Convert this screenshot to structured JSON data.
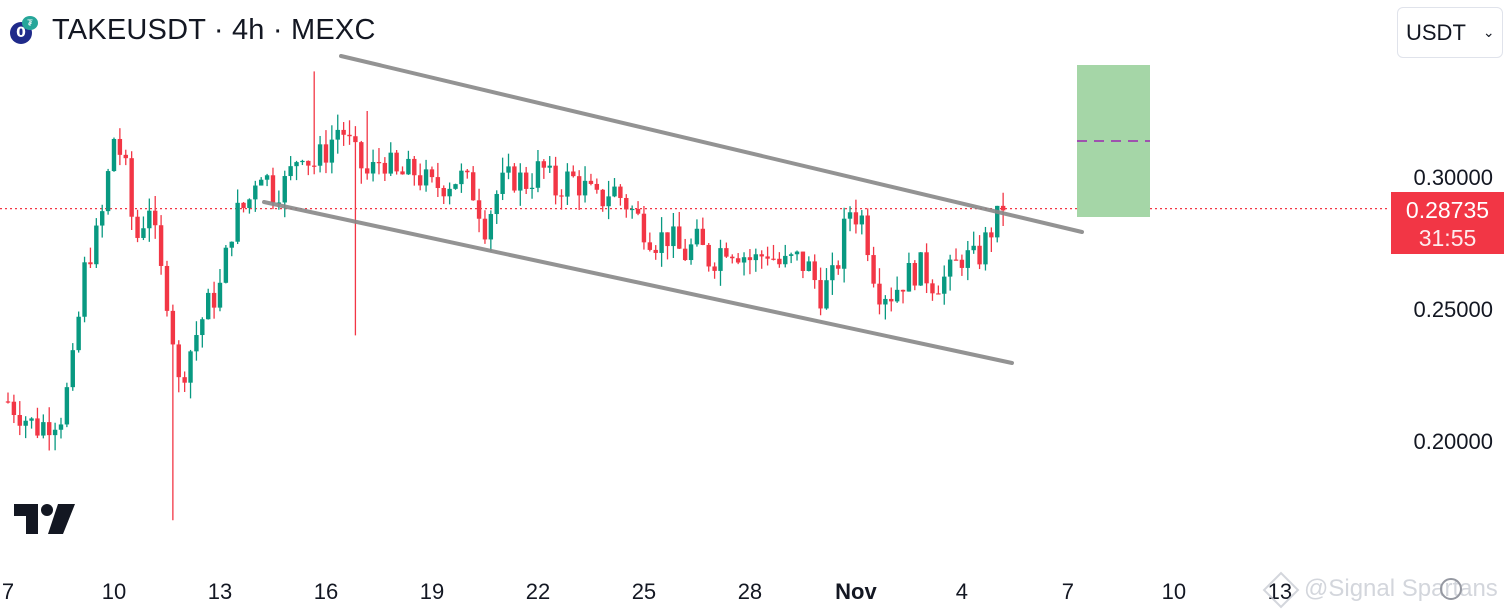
{
  "header": {
    "title": "TAKEUSDT · 4h · MEXC",
    "coin_icon": "take-coin-icon",
    "coin_letter": "0",
    "coin_tag": "₮"
  },
  "currency_select": {
    "value": "USDT",
    "icon": "chevron-down-icon"
  },
  "price_badge": {
    "price": "0.28735",
    "countdown": "31:55",
    "color": "#f23645"
  },
  "watermark": {
    "text": "@Signal Spartans"
  },
  "colors": {
    "up": "#089981",
    "down": "#f23645",
    "channel": "#888888",
    "target_zone": "#a5d6a7",
    "target_mid": "#9c27b0"
  },
  "chart_data": {
    "type": "candlestick",
    "symbol": "TAKEUSDT",
    "interval": "4h",
    "exchange": "MEXC",
    "x_tick_labels": [
      "7",
      "10",
      "13",
      "16",
      "19",
      "22",
      "25",
      "28",
      "Nov",
      "4",
      "7",
      "10",
      "13"
    ],
    "y_tick_labels": [
      "0.30000",
      "0.25000",
      "0.20000"
    ],
    "y_ticks": [
      0.3,
      0.25,
      0.2
    ],
    "ylim": [
      0.156,
      0.34
    ],
    "x_range_days": [
      "Oct 7",
      "Nov 14"
    ],
    "last_price": 0.28735,
    "candle_close_path": [
      [
        0.0,
        0.215
      ],
      [
        0.8,
        0.205
      ],
      [
        1.5,
        0.21
      ],
      [
        1.8,
        0.225
      ],
      [
        2.2,
        0.268
      ],
      [
        2.6,
        0.28
      ],
      [
        3.0,
        0.315
      ],
      [
        3.3,
        0.305
      ],
      [
        3.6,
        0.275
      ],
      [
        4.0,
        0.29
      ],
      [
        4.3,
        0.265
      ],
      [
        4.6,
        0.25
      ],
      [
        4.8,
        0.22
      ],
      [
        5.2,
        0.236
      ],
      [
        5.6,
        0.25
      ],
      [
        6.0,
        0.258
      ],
      [
        6.4,
        0.285
      ],
      [
        6.8,
        0.29
      ],
      [
        7.1,
        0.305
      ],
      [
        7.5,
        0.295
      ],
      [
        7.9,
        0.298
      ],
      [
        8.3,
        0.312
      ],
      [
        8.6,
        0.304
      ],
      [
        9.0,
        0.31
      ],
      [
        9.4,
        0.32
      ],
      [
        9.8,
        0.308
      ],
      [
        10.2,
        0.3
      ],
      [
        10.6,
        0.308
      ],
      [
        11.0,
        0.3
      ],
      [
        11.5,
        0.302
      ],
      [
        12.0,
        0.296
      ],
      [
        12.4,
        0.298
      ],
      [
        12.8,
        0.3
      ],
      [
        13.2,
        0.294
      ],
      [
        13.5,
        0.282
      ],
      [
        13.9,
        0.296
      ],
      [
        14.3,
        0.3
      ],
      [
        14.7,
        0.298
      ],
      [
        15.1,
        0.304
      ],
      [
        15.5,
        0.295
      ],
      [
        15.9,
        0.3
      ],
      [
        16.3,
        0.296
      ],
      [
        16.7,
        0.29
      ],
      [
        17.1,
        0.296
      ],
      [
        17.5,
        0.29
      ],
      [
        17.9,
        0.283
      ],
      [
        18.3,
        0.276
      ],
      [
        18.7,
        0.278
      ],
      [
        19.1,
        0.27
      ],
      [
        19.5,
        0.275
      ],
      [
        19.9,
        0.268
      ],
      [
        20.3,
        0.275
      ],
      [
        20.7,
        0.272
      ],
      [
        21.1,
        0.268
      ],
      [
        21.5,
        0.272
      ],
      [
        21.9,
        0.266
      ],
      [
        22.3,
        0.269
      ],
      [
        22.7,
        0.265
      ],
      [
        23.0,
        0.256
      ],
      [
        23.4,
        0.262
      ],
      [
        23.8,
        0.288
      ],
      [
        24.2,
        0.284
      ],
      [
        24.6,
        0.258
      ],
      [
        25.0,
        0.256
      ],
      [
        25.4,
        0.262
      ],
      [
        25.8,
        0.266
      ],
      [
        26.2,
        0.26
      ],
      [
        26.6,
        0.262
      ],
      [
        27.0,
        0.27
      ],
      [
        27.4,
        0.268
      ],
      [
        27.9,
        0.282
      ],
      [
        28.2,
        0.287
      ]
    ],
    "channel_upper": {
      "from": [
        "Oct 16",
        0.338
      ],
      "to": [
        "Nov 6",
        0.282
      ]
    },
    "channel_lower": {
      "from": [
        "Oct 14",
        0.289
      ],
      "to": [
        "Nov 5",
        0.231
      ]
    },
    "target_zone": {
      "x_from": "Nov 6",
      "x_to": "Nov 8",
      "y_from": 0.287,
      "y_to": 0.345,
      "mid": 0.3155
    }
  }
}
